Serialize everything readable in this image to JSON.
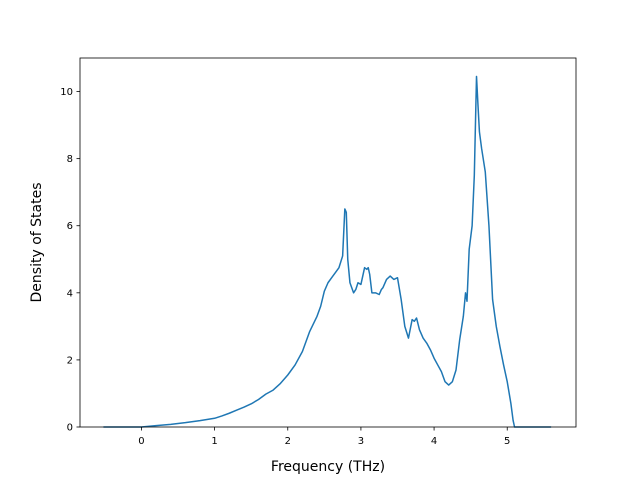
{
  "chart_data": {
    "type": "line",
    "xlabel": "Frequency (THz)",
    "ylabel": "Density of States",
    "xlim": [
      -0.84,
      5.94
    ],
    "ylim": [
      0,
      11.0
    ],
    "xticks": [
      0,
      1,
      2,
      3,
      4,
      5
    ],
    "yticks": [
      0,
      2,
      4,
      6,
      8,
      10
    ],
    "grid": false,
    "legend": "none",
    "color": "#1f77b4",
    "series": [
      {
        "x": [
          -0.52,
          -0.3,
          0.0,
          0.2,
          0.4,
          0.6,
          0.8,
          1.0,
          1.1,
          1.2,
          1.3,
          1.4,
          1.5,
          1.6,
          1.7,
          1.8,
          1.9,
          2.0,
          2.1,
          2.2,
          2.3,
          2.4,
          2.45,
          2.5,
          2.55,
          2.6,
          2.65,
          2.7,
          2.75,
          2.78,
          2.8,
          2.82,
          2.85,
          2.9,
          2.93,
          2.96,
          3.0,
          3.05,
          3.08,
          3.1,
          3.12,
          3.15,
          3.2,
          3.25,
          3.28,
          3.3,
          3.35,
          3.4,
          3.45,
          3.5,
          3.55,
          3.6,
          3.65,
          3.7,
          3.73,
          3.76,
          3.8,
          3.85,
          3.9,
          3.95,
          4.0,
          4.05,
          4.1,
          4.15,
          4.2,
          4.25,
          4.3,
          4.35,
          4.4,
          4.43,
          4.45,
          4.48,
          4.52,
          4.55,
          4.58,
          4.6,
          4.62,
          4.65,
          4.7,
          4.75,
          4.8,
          4.85,
          4.9,
          4.95,
          5.0,
          5.05,
          5.08,
          5.1,
          5.12,
          5.3,
          5.6
        ],
        "y": [
          0.0,
          0.0,
          0.0,
          0.04,
          0.08,
          0.13,
          0.19,
          0.26,
          0.33,
          0.41,
          0.5,
          0.59,
          0.69,
          0.82,
          0.98,
          1.1,
          1.3,
          1.55,
          1.85,
          2.25,
          2.85,
          3.3,
          3.6,
          4.05,
          4.3,
          4.45,
          4.6,
          4.75,
          5.1,
          6.5,
          6.4,
          5.0,
          4.3,
          4.0,
          4.1,
          4.3,
          4.25,
          4.75,
          4.7,
          4.75,
          4.55,
          4.0,
          4.0,
          3.95,
          4.1,
          4.15,
          4.4,
          4.5,
          4.4,
          4.45,
          3.8,
          3.0,
          2.65,
          3.2,
          3.15,
          3.25,
          2.9,
          2.65,
          2.5,
          2.3,
          2.05,
          1.85,
          1.65,
          1.35,
          1.25,
          1.35,
          1.7,
          2.6,
          3.3,
          4.0,
          3.75,
          5.3,
          6.0,
          7.5,
          10.45,
          9.6,
          8.8,
          8.3,
          7.6,
          6.0,
          3.8,
          3.0,
          2.4,
          1.85,
          1.35,
          0.7,
          0.2,
          0.0,
          0.0,
          0.0,
          0.0
        ]
      }
    ]
  }
}
